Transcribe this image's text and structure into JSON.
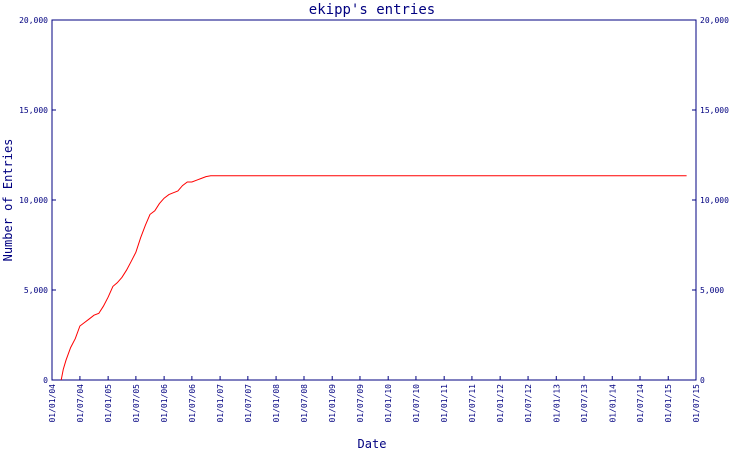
{
  "chart_data": {
    "type": "line",
    "title": "ekipp's entries",
    "xlabel": "Date",
    "ylabel": "Number of Entries",
    "ylim": [
      0,
      20000
    ],
    "y_ticks": [
      0,
      5000,
      10000,
      15000,
      20000
    ],
    "y_tick_labels": [
      "0",
      "5,000",
      "10,000",
      "15,000",
      "20,000"
    ],
    "x_ticks": [
      "2004-01-01",
      "2004-07-01",
      "2005-01-01",
      "2005-07-01",
      "2006-01-01",
      "2006-07-01",
      "2007-01-01",
      "2007-07-01",
      "2008-01-01",
      "2008-07-01",
      "2009-01-01",
      "2009-07-01",
      "2010-01-01",
      "2010-07-01",
      "2011-01-01",
      "2011-07-01",
      "2012-01-01",
      "2012-07-01",
      "2013-01-01",
      "2013-07-01",
      "2014-01-01",
      "2014-07-01",
      "2015-01-01",
      "2015-07-01"
    ],
    "x_tick_labels": [
      "01/01/04",
      "01/07/04",
      "01/01/05",
      "01/07/05",
      "01/01/06",
      "01/07/06",
      "01/01/07",
      "01/07/07",
      "01/01/08",
      "01/07/08",
      "01/01/09",
      "01/07/09",
      "01/01/10",
      "01/07/10",
      "01/01/11",
      "01/07/11",
      "01/01/12",
      "01/07/12",
      "01/01/13",
      "01/07/13",
      "01/01/14",
      "01/07/14",
      "01/01/15",
      "01/07/15"
    ],
    "series": [
      {
        "color": "#ff0000",
        "points": [
          [
            "2004-03-01",
            0
          ],
          [
            "2004-03-15",
            600
          ],
          [
            "2004-04-01",
            1100
          ],
          [
            "2004-05-01",
            1800
          ],
          [
            "2004-06-01",
            2300
          ],
          [
            "2004-07-01",
            3000
          ],
          [
            "2004-08-01",
            3200
          ],
          [
            "2004-09-01",
            3400
          ],
          [
            "2004-10-01",
            3600
          ],
          [
            "2004-11-01",
            3700
          ],
          [
            "2004-12-01",
            4100
          ],
          [
            "2005-01-01",
            4600
          ],
          [
            "2005-02-01",
            5200
          ],
          [
            "2005-03-01",
            5400
          ],
          [
            "2005-04-01",
            5700
          ],
          [
            "2005-05-01",
            6100
          ],
          [
            "2005-06-01",
            6600
          ],
          [
            "2005-07-01",
            7100
          ],
          [
            "2005-08-01",
            7900
          ],
          [
            "2005-09-01",
            8600
          ],
          [
            "2005-10-01",
            9200
          ],
          [
            "2005-11-01",
            9400
          ],
          [
            "2005-12-01",
            9800
          ],
          [
            "2006-01-01",
            10100
          ],
          [
            "2006-02-01",
            10300
          ],
          [
            "2006-03-01",
            10400
          ],
          [
            "2006-04-01",
            10500
          ],
          [
            "2006-05-01",
            10800
          ],
          [
            "2006-06-01",
            11000
          ],
          [
            "2006-07-01",
            11000
          ],
          [
            "2006-08-01",
            11100
          ],
          [
            "2006-09-01",
            11200
          ],
          [
            "2006-10-01",
            11300
          ],
          [
            "2006-11-01",
            11350
          ],
          [
            "2007-01-01",
            11350
          ],
          [
            "2015-05-01",
            11350
          ]
        ]
      }
    ]
  }
}
